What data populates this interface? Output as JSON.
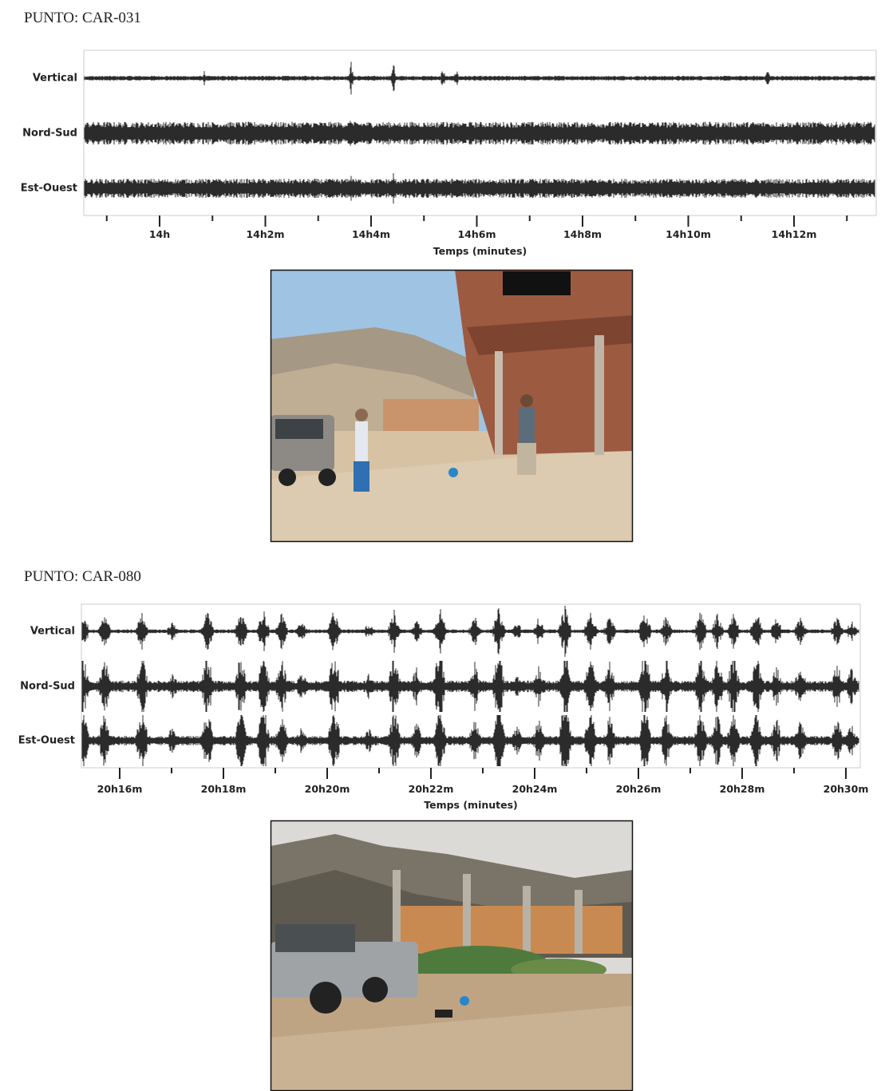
{
  "sections": [
    {
      "title": "PUNTO: CAR-031",
      "seismogram": {
        "channels": [
          "Vertical",
          "Nord-Sud",
          "Est-Ouest"
        ],
        "time_labels": [
          "14h",
          "14h2m",
          "14h4m",
          "14h6m",
          "14h8m",
          "14h10m",
          "14h12m"
        ],
        "axis_label": "Temps (minutes)"
      }
    },
    {
      "title": "PUNTO: CAR-080",
      "seismogram": {
        "channels": [
          "Vertical",
          "Nord-Sud",
          "Est-Ouest"
        ],
        "time_labels": [
          "20h16m",
          "20h18m",
          "20h20m",
          "20h22m",
          "20h24m",
          "20h26m",
          "20h28m",
          "20h30m"
        ],
        "axis_label": "Temps (minutes)"
      }
    }
  ]
}
